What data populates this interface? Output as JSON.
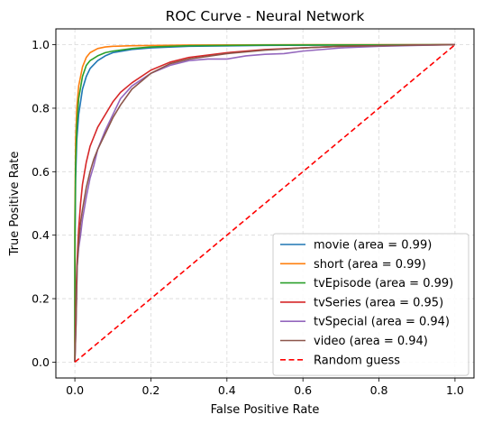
{
  "chart_data": {
    "type": "line",
    "title": "ROC Curve - Neural Network",
    "xlabel": "False Positive Rate",
    "ylabel": "True Positive Rate",
    "xlim": [
      -0.05,
      1.05
    ],
    "ylim": [
      -0.05,
      1.05
    ],
    "xticks": [
      0.0,
      0.2,
      0.4,
      0.6,
      0.8,
      1.0
    ],
    "yticks": [
      0.0,
      0.2,
      0.4,
      0.6,
      0.8,
      1.0
    ],
    "xtick_labels": [
      "0.0",
      "0.2",
      "0.4",
      "0.6",
      "0.8",
      "1.0"
    ],
    "ytick_labels": [
      "0.0",
      "0.2",
      "0.4",
      "0.6",
      "0.8",
      "1.0"
    ],
    "grid": true,
    "legend_position": "lower right",
    "series": [
      {
        "name": "movie (area = 0.99)",
        "color": "#1f77b4",
        "x": [
          0.0,
          0.0,
          0.002,
          0.005,
          0.01,
          0.02,
          0.03,
          0.04,
          0.06,
          0.08,
          0.1,
          0.15,
          0.2,
          0.3,
          0.5,
          0.7,
          1.0
        ],
        "y": [
          0.0,
          0.3,
          0.58,
          0.7,
          0.78,
          0.86,
          0.9,
          0.925,
          0.95,
          0.965,
          0.975,
          0.985,
          0.99,
          0.995,
          0.998,
          0.999,
          1.0
        ]
      },
      {
        "name": "short (area = 0.99)",
        "color": "#ff7f0e",
        "x": [
          0.0,
          0.0,
          0.002,
          0.005,
          0.01,
          0.02,
          0.03,
          0.04,
          0.06,
          0.08,
          0.1,
          0.15,
          0.3,
          0.6,
          1.0
        ],
        "y": [
          0.0,
          0.45,
          0.7,
          0.8,
          0.87,
          0.93,
          0.96,
          0.975,
          0.988,
          0.993,
          0.995,
          0.997,
          0.999,
          1.0,
          1.0
        ]
      },
      {
        "name": "tvEpisode (area = 0.99)",
        "color": "#2ca02c",
        "x": [
          0.0,
          0.0,
          0.002,
          0.005,
          0.01,
          0.02,
          0.03,
          0.04,
          0.06,
          0.08,
          0.1,
          0.15,
          0.2,
          0.3,
          0.5,
          1.0
        ],
        "y": [
          0.0,
          0.4,
          0.62,
          0.74,
          0.83,
          0.9,
          0.935,
          0.95,
          0.965,
          0.975,
          0.98,
          0.988,
          0.993,
          0.997,
          0.999,
          1.0
        ]
      },
      {
        "name": "tvSeries (area = 0.95)",
        "color": "#d62728",
        "x": [
          0.0,
          0.003,
          0.005,
          0.01,
          0.015,
          0.02,
          0.03,
          0.04,
          0.05,
          0.06,
          0.08,
          0.1,
          0.12,
          0.15,
          0.2,
          0.25,
          0.3,
          0.4,
          0.5,
          0.6,
          0.7,
          0.8,
          0.9,
          1.0
        ],
        "y": [
          0.0,
          0.2,
          0.3,
          0.42,
          0.5,
          0.56,
          0.63,
          0.68,
          0.71,
          0.74,
          0.78,
          0.82,
          0.85,
          0.88,
          0.92,
          0.945,
          0.96,
          0.975,
          0.985,
          0.99,
          0.995,
          0.997,
          0.999,
          1.0
        ]
      },
      {
        "name": "tvSpecial (area = 0.94)",
        "color": "#9467bd",
        "x": [
          0.0,
          0.003,
          0.006,
          0.01,
          0.015,
          0.02,
          0.03,
          0.04,
          0.05,
          0.06,
          0.08,
          0.1,
          0.12,
          0.15,
          0.2,
          0.25,
          0.3,
          0.35,
          0.4,
          0.45,
          0.5,
          0.55,
          0.6,
          0.7,
          0.8,
          0.9,
          1.0
        ],
        "y": [
          0.0,
          0.12,
          0.3,
          0.36,
          0.4,
          0.45,
          0.52,
          0.58,
          0.62,
          0.67,
          0.73,
          0.78,
          0.83,
          0.87,
          0.91,
          0.935,
          0.95,
          0.955,
          0.955,
          0.965,
          0.97,
          0.972,
          0.98,
          0.99,
          0.995,
          0.998,
          1.0
        ]
      },
      {
        "name": "video (area = 0.94)",
        "color": "#8c564b",
        "x": [
          0.0,
          0.003,
          0.006,
          0.01,
          0.015,
          0.02,
          0.03,
          0.04,
          0.05,
          0.06,
          0.08,
          0.1,
          0.12,
          0.15,
          0.2,
          0.25,
          0.3,
          0.4,
          0.5,
          0.6,
          0.7,
          0.8,
          0.9,
          1.0
        ],
        "y": [
          0.0,
          0.12,
          0.3,
          0.38,
          0.44,
          0.48,
          0.55,
          0.6,
          0.64,
          0.67,
          0.72,
          0.77,
          0.81,
          0.86,
          0.91,
          0.94,
          0.955,
          0.972,
          0.983,
          0.99,
          0.995,
          0.997,
          0.999,
          1.0
        ]
      },
      {
        "name": "Random guess",
        "color": "#ff0000",
        "dashed": true,
        "x": [
          0.0,
          1.0
        ],
        "y": [
          0.0,
          1.0
        ]
      }
    ]
  }
}
